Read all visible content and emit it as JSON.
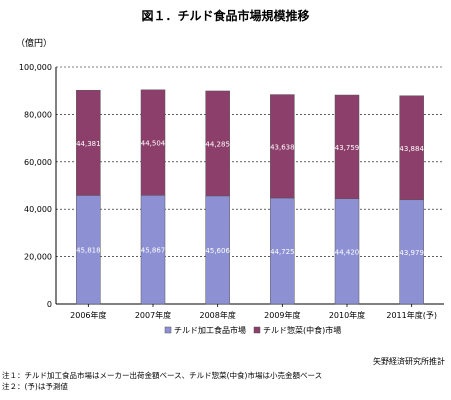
{
  "chart_data": {
    "type": "bar",
    "stacked": true,
    "title": "図１．チルド食品市場規模推移",
    "ylabel": "（億円）",
    "ylim": [
      0,
      100000
    ],
    "yticks": [
      "0",
      "20,000",
      "40,000",
      "60,000",
      "80,000",
      "100,000"
    ],
    "grid": true,
    "legend_position": "bottom",
    "categories": [
      "2006年度",
      "2007年度",
      "2008年度",
      "2009年度",
      "2010年度",
      "2011年度(予)"
    ],
    "series": [
      {
        "name": "チルド加工食品市場",
        "values": [
          45818,
          45867,
          45606,
          44725,
          44420,
          43979
        ],
        "labels": [
          "45,818",
          "45,867",
          "45,606",
          "44,725",
          "44,420",
          "43,979"
        ],
        "color": "#8d91d4"
      },
      {
        "name": "チルド惣菜(中食)市場",
        "values": [
          44381,
          44504,
          44285,
          43638,
          43759,
          43884
        ],
        "labels": [
          "44,381",
          "44,504",
          "44,285",
          "43,638",
          "43,759",
          "43,884"
        ],
        "color": "#8c3f6b"
      }
    ]
  },
  "source": "矢野経済研究所推計",
  "notes": [
    "注１：チルド加工食品市場はメーカー出荷金額ベース、チルド惣菜(中食)市場は小売金額ベース",
    "注２：(予)は予測値"
  ]
}
